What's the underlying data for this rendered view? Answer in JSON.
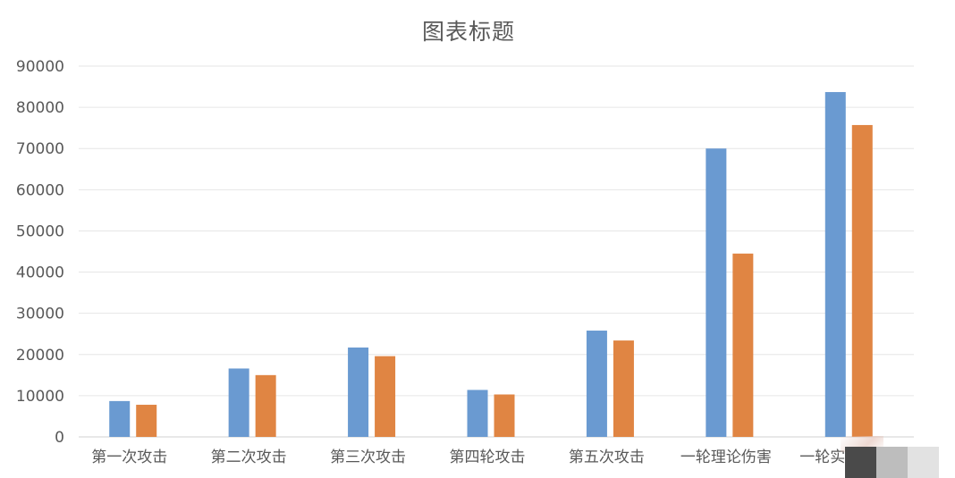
{
  "chart_data": {
    "type": "bar",
    "title": "图表标题",
    "categories": [
      "第一次攻击",
      "第二次攻击",
      "第三次攻击",
      "第四轮攻击",
      "第五次攻击",
      "一轮理论伤害",
      "一轮实际伤害"
    ],
    "series": [
      {
        "values": [
          8700,
          16600,
          21700,
          11400,
          25800,
          70000,
          83700
        ]
      },
      {
        "values": [
          7800,
          15000,
          19600,
          10300,
          23400,
          44500,
          75700
        ]
      }
    ],
    "colors": [
      "#6a9ad1",
      "#e08543"
    ],
    "ylim": [
      0,
      90000
    ],
    "yticks": [
      0,
      10000,
      20000,
      30000,
      40000,
      50000,
      60000,
      70000,
      80000,
      90000
    ],
    "grid": true,
    "legend": "none"
  }
}
